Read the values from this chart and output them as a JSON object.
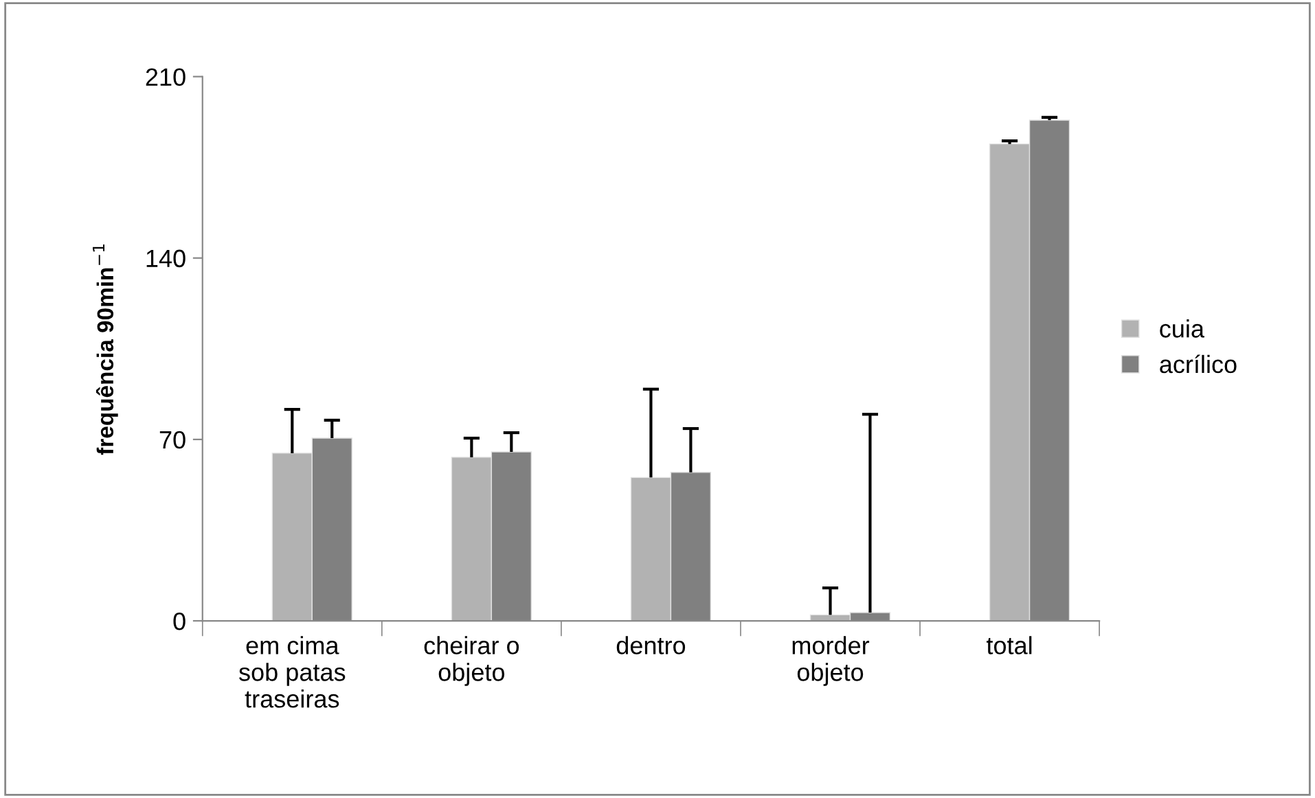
{
  "chart_data": {
    "type": "bar",
    "ylabel": "frequência 90min$^{−1}$",
    "categories": [
      "em cima\nsob patas\ntraseiras",
      "cheirar o\nobjeto",
      "dentro",
      "morder\nobjeto",
      "total"
    ],
    "series": [
      {
        "name": "cuia",
        "color": "#b2b2b2",
        "values": [
          64.7,
          63.1,
          55.3,
          2.3,
          184
        ],
        "errors": [
          [
            64.7,
            81.6
          ],
          [
            63.1,
            70.5
          ],
          [
            55.3,
            89.4
          ],
          [
            2.3,
            12.7
          ],
          [
            184,
            185.2
          ]
        ]
      },
      {
        "name": "acrílico",
        "color": "#808080",
        "values": [
          70.5,
          65.2,
          57.3,
          3.2,
          193.2
        ],
        "errors": [
          [
            70.5,
            77.4
          ],
          [
            65.2,
            72.6
          ],
          [
            57.3,
            74.2
          ],
          [
            3.2,
            79.7
          ],
          [
            193.2,
            194.3
          ]
        ]
      }
    ],
    "ylim": [
      0,
      210
    ],
    "yticks": [
      0,
      70,
      140,
      210
    ],
    "grid": false,
    "legend": "right"
  }
}
